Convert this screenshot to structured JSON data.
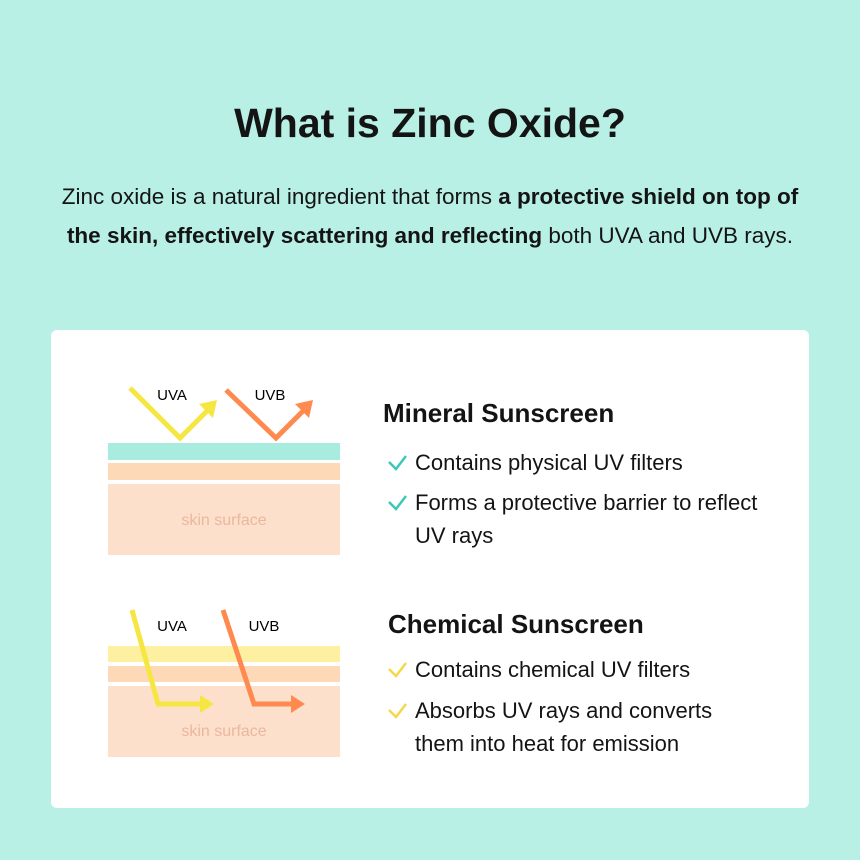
{
  "title": "What is Zinc Oxide?",
  "intro": [
    "Zinc oxide is a natural ingredient that forms ",
    "a protective shield on top of the skin, effectively scattering and reflecting",
    " both UVA and UVB rays."
  ],
  "panels": [
    {
      "diagram_labels": [
        "UVA",
        "UVB",
        "skin surface"
      ],
      "heading": "Mineral Sunscreen",
      "points": [
        "Contains physical UV filters",
        "Forms a protective barrier to reflect UV rays"
      ]
    },
    {
      "diagram_labels": [
        "UVA",
        "UVB",
        "skin surface"
      ],
      "heading": "Chemical Sunscreen",
      "points": [
        "Contains chemical UV filters",
        "Absorbs UV rays and converts them into heat for emission"
      ]
    }
  ]
}
